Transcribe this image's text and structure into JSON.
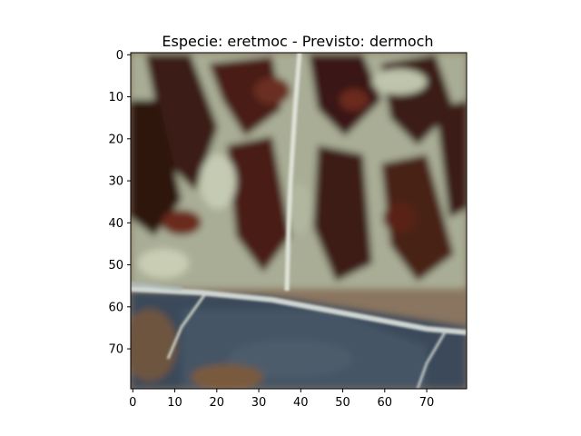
{
  "figure": {
    "title": "Especie: eretmoc - Previsto: dermoch"
  },
  "image_axes": {
    "xlim": [
      0,
      79
    ],
    "ylim": [
      0,
      79
    ],
    "x_ticks": [
      0,
      10,
      20,
      30,
      40,
      50,
      60,
      70
    ],
    "y_ticks": [
      0,
      10,
      20,
      30,
      40,
      50,
      60,
      70
    ],
    "image_description_colors": {
      "dark_brown": "#3a1a14",
      "rust": "#6b2a1a",
      "pale_sage": "#b7c1a6",
      "slate_blue": "#3b4a5a",
      "cream": "#d9d3b5"
    }
  }
}
